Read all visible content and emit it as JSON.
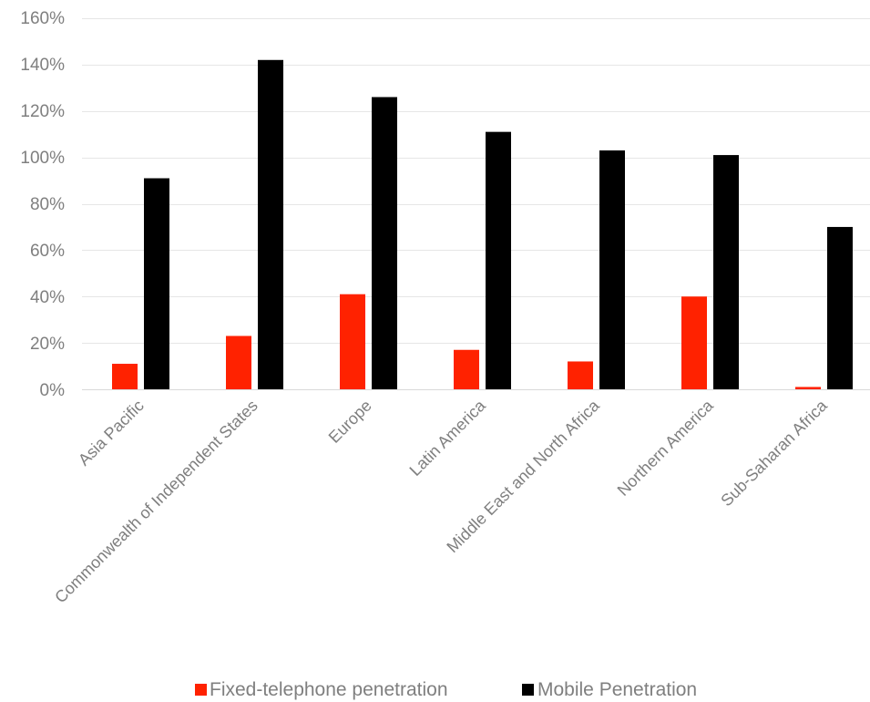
{
  "chart_data": {
    "type": "bar",
    "categories": [
      "Asia Pacific",
      "Commonwealth of Independent States",
      "Europe",
      "Latin America",
      "Middle East and North Africa",
      "Northern America",
      "Sub-Saharan Africa"
    ],
    "series": [
      {
        "name": "Fixed-telephone penetration",
        "color": "#ff2200",
        "values": [
          11,
          23,
          41,
          17,
          12,
          40,
          1
        ]
      },
      {
        "name": "Mobile Penetration",
        "color": "#000000",
        "values": [
          91,
          142,
          126,
          111,
          103,
          101,
          70
        ]
      }
    ],
    "yticks": [
      "0%",
      "20%",
      "40%",
      "60%",
      "80%",
      "100%",
      "120%",
      "140%",
      "160%"
    ],
    "ylim": [
      0,
      160
    ],
    "grid": true,
    "legend_position": "bottom"
  }
}
